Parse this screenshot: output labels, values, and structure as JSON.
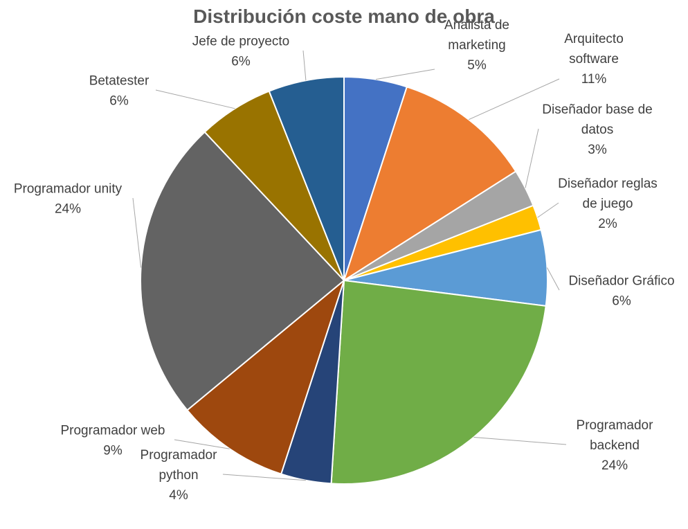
{
  "chart_data": {
    "type": "pie",
    "title": "Distribución coste mano de obra",
    "legend": "none",
    "slices": [
      {
        "label_lines": [
          "Analista de",
          "marketing"
        ],
        "value": 5,
        "percent_label": "5%",
        "color": "#4472C4"
      },
      {
        "label_lines": [
          "Arquitecto",
          "software"
        ],
        "value": 11,
        "percent_label": "11%",
        "color": "#ED7D31"
      },
      {
        "label_lines": [
          "Diseñador base de",
          "datos"
        ],
        "value": 3,
        "percent_label": "3%",
        "color": "#A5A5A5"
      },
      {
        "label_lines": [
          "Diseñador reglas",
          "de juego"
        ],
        "value": 2,
        "percent_label": "2%",
        "color": "#FFC000"
      },
      {
        "label_lines": [
          "Diseñador Gráfico"
        ],
        "value": 6,
        "percent_label": "6%",
        "color": "#5B9BD5"
      },
      {
        "label_lines": [
          "Programador",
          "backend"
        ],
        "value": 24,
        "percent_label": "24%",
        "color": "#70AD47"
      },
      {
        "label_lines": [
          "Programador",
          "python"
        ],
        "value": 4,
        "percent_label": "4%",
        "color": "#264478"
      },
      {
        "label_lines": [
          "Programador web"
        ],
        "value": 9,
        "percent_label": "9%",
        "color": "#9E480E"
      },
      {
        "label_lines": [
          "Programador unity"
        ],
        "value": 24,
        "percent_label": "24%",
        "color": "#636363"
      },
      {
        "label_lines": [
          "Betatester"
        ],
        "value": 6,
        "percent_label": "6%",
        "color": "#997300"
      },
      {
        "label_lines": [
          "Jefe de proyecto"
        ],
        "value": 6,
        "percent_label": "6%",
        "color": "#255E91"
      }
    ]
  }
}
